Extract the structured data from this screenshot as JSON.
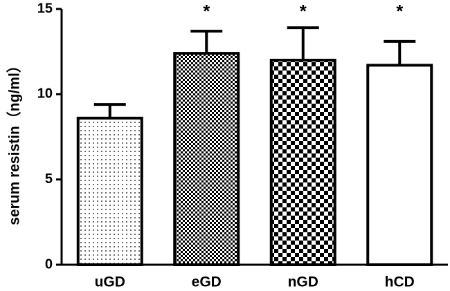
{
  "chart_data": {
    "type": "bar",
    "y_label": "serum resistin（ng/ml）",
    "categories": [
      "uGD",
      "eGD",
      "nGD",
      "hCD"
    ],
    "values": [
      8.6,
      12.4,
      12.0,
      11.7
    ],
    "errors": [
      0.8,
      1.3,
      1.9,
      1.4
    ],
    "patterns": [
      "dots",
      "fine-checker",
      "checker",
      "none"
    ],
    "significant": [
      false,
      true,
      true,
      true
    ],
    "significance_marker": "*",
    "color": "#000000",
    "ylim": [
      0,
      15
    ],
    "yticks": [
      0,
      5,
      10,
      15
    ],
    "grid": false
  }
}
